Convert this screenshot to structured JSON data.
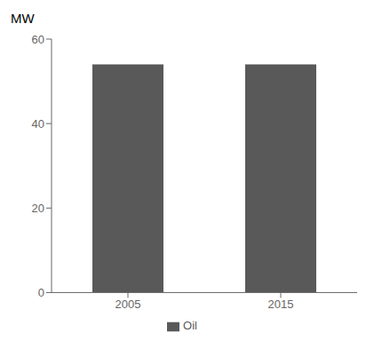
{
  "chart_data": {
    "type": "bar",
    "ylabel": "MW",
    "categories": [
      "2005",
      "2015"
    ],
    "series": [
      {
        "name": "Oil",
        "color": "#595959",
        "values": [
          54,
          54
        ]
      }
    ],
    "ylim": [
      0,
      60
    ],
    "yticks": [
      0,
      20,
      40,
      60
    ],
    "legend": "bottom"
  }
}
